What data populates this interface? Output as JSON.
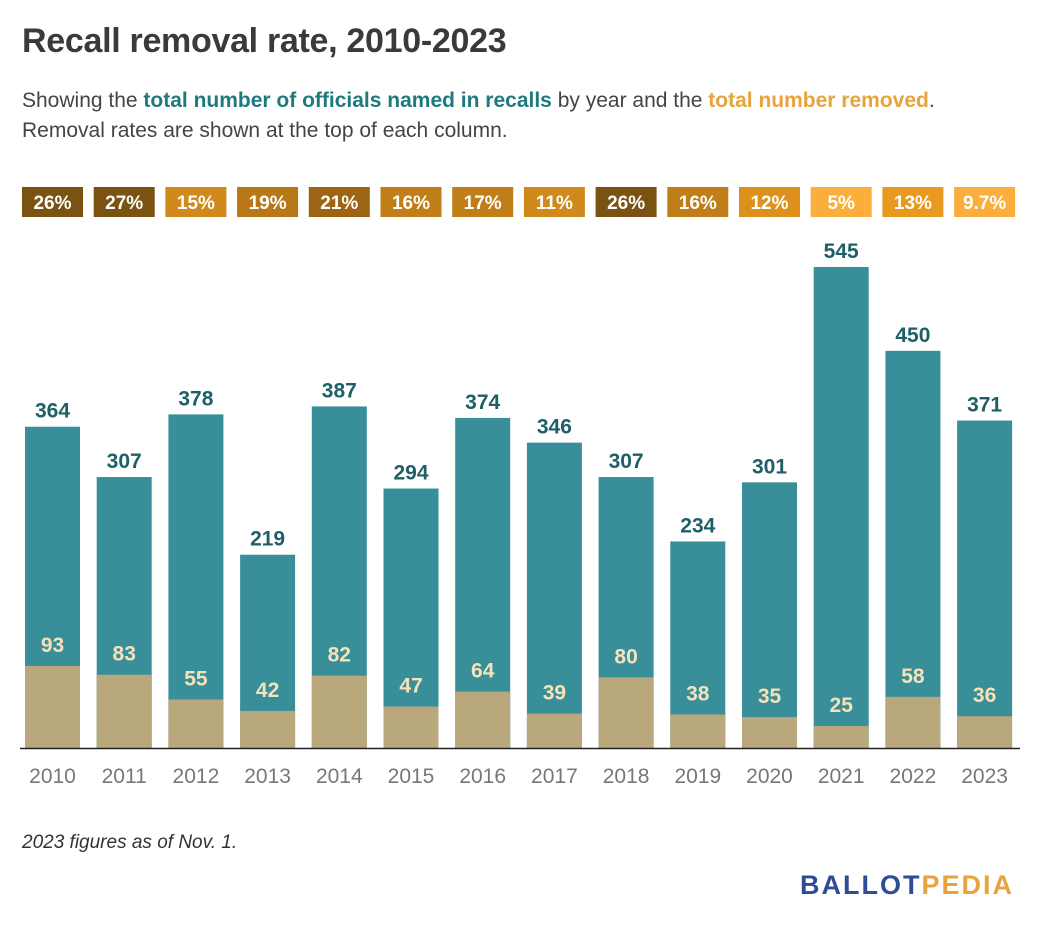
{
  "title": "Recall removal rate, 2010-2023",
  "subtitle": {
    "prefix": "Showing the ",
    "total_phrase": "total number of officials named in recalls",
    "middle": " by year and the ",
    "removed_phrase": "total number removed",
    "suffix": ".",
    "line2": "Removal rates are shown at the top of each column."
  },
  "note": "2023 figures as of Nov. 1.",
  "logo": {
    "part1": "BALLOT",
    "part2": "PEDIA"
  },
  "colors": {
    "total_bar": "#388e99",
    "removed_bar": "#b8a87c",
    "total_label": "#1f5f66",
    "removed_label": "#f6e2b8",
    "axis_label": "#777777"
  },
  "chart_data": {
    "type": "bar",
    "categories": [
      "2010",
      "2011",
      "2012",
      "2013",
      "2014",
      "2015",
      "2016",
      "2017",
      "2018",
      "2019",
      "2020",
      "2021",
      "2022",
      "2023"
    ],
    "series": [
      {
        "name": "total number of officials named in recalls",
        "values": [
          364,
          307,
          378,
          219,
          387,
          294,
          374,
          346,
          307,
          234,
          301,
          545,
          450,
          371
        ]
      },
      {
        "name": "total number removed",
        "values": [
          93,
          83,
          55,
          42,
          82,
          47,
          64,
          39,
          80,
          38,
          35,
          25,
          58,
          36
        ]
      }
    ],
    "removal_rates": [
      "26%",
      "27%",
      "15%",
      "19%",
      "21%",
      "16%",
      "17%",
      "11%",
      "26%",
      "16%",
      "12%",
      "5%",
      "13%",
      "9.7%"
    ],
    "rate_colors": [
      "#7a5212",
      "#7a5212",
      "#d08a1c",
      "#b97818",
      "#9b6514",
      "#c07e19",
      "#c07e19",
      "#d08a1c",
      "#7a5212",
      "#c07e19",
      "#dc911d",
      "#fbae3c",
      "#e8991f",
      "#fbae3c"
    ],
    "ylim": [
      0,
      545
    ],
    "grid": false,
    "xlabel": "",
    "ylabel": ""
  }
}
